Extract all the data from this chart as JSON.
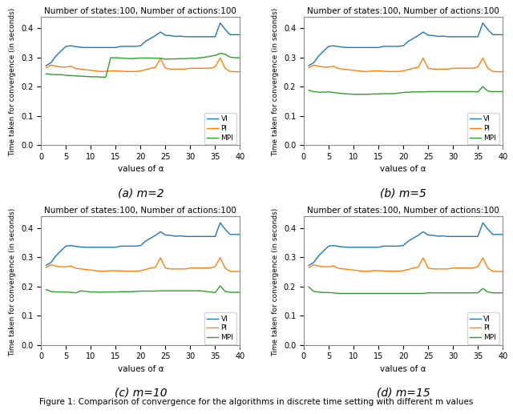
{
  "title": "Number of states:100, Number of actions:100",
  "xlabel": "values of α",
  "ylabel": "Time taken for convergence (in seconds)",
  "xlim": [
    0,
    40
  ],
  "ylim": [
    -0.01,
    0.44
  ],
  "yticks": [
    0.0,
    0.1,
    0.2,
    0.3,
    0.4
  ],
  "xticks": [
    0,
    5,
    10,
    15,
    20,
    25,
    30,
    35,
    40
  ],
  "colors": {
    "VI": "#1f77b4",
    "PI": "#ff7f0e",
    "MPI": "#2ca02c"
  },
  "subplots": [
    {
      "label": "(a) m=2",
      "alpha_values": [
        1,
        2,
        3,
        4,
        5,
        6,
        7,
        8,
        9,
        10,
        11,
        12,
        13,
        14,
        15,
        16,
        17,
        18,
        19,
        20,
        21,
        22,
        23,
        24,
        25,
        26,
        27,
        28,
        29,
        30,
        31,
        32,
        33,
        34,
        35,
        36,
        37,
        38,
        39,
        40
      ],
      "VI": [
        0.272,
        0.282,
        0.305,
        0.322,
        0.338,
        0.34,
        0.337,
        0.335,
        0.334,
        0.334,
        0.334,
        0.334,
        0.334,
        0.334,
        0.334,
        0.338,
        0.338,
        0.338,
        0.338,
        0.34,
        0.355,
        0.365,
        0.375,
        0.387,
        0.376,
        0.375,
        0.372,
        0.373,
        0.371,
        0.371,
        0.371,
        0.371,
        0.371,
        0.371,
        0.371,
        0.418,
        0.396,
        0.378,
        0.378,
        0.378
      ],
      "PI": [
        0.265,
        0.274,
        0.27,
        0.267,
        0.267,
        0.27,
        0.262,
        0.26,
        0.258,
        0.256,
        0.254,
        0.252,
        0.252,
        0.254,
        0.254,
        0.253,
        0.252,
        0.252,
        0.252,
        0.254,
        0.258,
        0.263,
        0.266,
        0.298,
        0.263,
        0.26,
        0.26,
        0.26,
        0.26,
        0.263,
        0.263,
        0.263,
        0.263,
        0.263,
        0.268,
        0.298,
        0.263,
        0.252,
        0.251,
        0.251
      ],
      "MPI": [
        0.244,
        0.242,
        0.241,
        0.241,
        0.239,
        0.238,
        0.237,
        0.236,
        0.235,
        0.234,
        0.234,
        0.233,
        0.232,
        0.299,
        0.299,
        0.298,
        0.297,
        0.296,
        0.297,
        0.298,
        0.298,
        0.298,
        0.297,
        0.298,
        0.294,
        0.295,
        0.295,
        0.296,
        0.296,
        0.297,
        0.297,
        0.299,
        0.301,
        0.304,
        0.307,
        0.314,
        0.311,
        0.301,
        0.299,
        0.299
      ]
    },
    {
      "label": "(b) m=5",
      "alpha_values": [
        1,
        2,
        3,
        4,
        5,
        6,
        7,
        8,
        9,
        10,
        11,
        12,
        13,
        14,
        15,
        16,
        17,
        18,
        19,
        20,
        21,
        22,
        23,
        24,
        25,
        26,
        27,
        28,
        29,
        30,
        31,
        32,
        33,
        34,
        35,
        36,
        37,
        38,
        39,
        40
      ],
      "VI": [
        0.272,
        0.282,
        0.305,
        0.322,
        0.338,
        0.34,
        0.337,
        0.335,
        0.334,
        0.334,
        0.334,
        0.334,
        0.334,
        0.334,
        0.334,
        0.338,
        0.338,
        0.338,
        0.338,
        0.34,
        0.355,
        0.365,
        0.375,
        0.387,
        0.376,
        0.375,
        0.372,
        0.373,
        0.371,
        0.371,
        0.371,
        0.371,
        0.371,
        0.371,
        0.371,
        0.418,
        0.396,
        0.378,
        0.378,
        0.378
      ],
      "PI": [
        0.265,
        0.274,
        0.27,
        0.267,
        0.267,
        0.27,
        0.262,
        0.26,
        0.258,
        0.256,
        0.254,
        0.252,
        0.252,
        0.254,
        0.254,
        0.253,
        0.252,
        0.252,
        0.252,
        0.254,
        0.258,
        0.263,
        0.266,
        0.298,
        0.263,
        0.26,
        0.26,
        0.26,
        0.26,
        0.263,
        0.263,
        0.263,
        0.263,
        0.263,
        0.268,
        0.298,
        0.263,
        0.252,
        0.251,
        0.251
      ],
      "MPI": [
        0.188,
        0.183,
        0.181,
        0.181,
        0.182,
        0.18,
        0.178,
        0.176,
        0.175,
        0.174,
        0.174,
        0.174,
        0.174,
        0.175,
        0.175,
        0.176,
        0.176,
        0.176,
        0.178,
        0.18,
        0.181,
        0.182,
        0.182,
        0.182,
        0.183,
        0.183,
        0.183,
        0.183,
        0.183,
        0.183,
        0.183,
        0.183,
        0.183,
        0.183,
        0.182,
        0.2,
        0.185,
        0.183,
        0.183,
        0.183
      ]
    },
    {
      "label": "(c) m=10",
      "alpha_values": [
        1,
        2,
        3,
        4,
        5,
        6,
        7,
        8,
        9,
        10,
        11,
        12,
        13,
        14,
        15,
        16,
        17,
        18,
        19,
        20,
        21,
        22,
        23,
        24,
        25,
        26,
        27,
        28,
        29,
        30,
        31,
        32,
        33,
        34,
        35,
        36,
        37,
        38,
        39,
        40
      ],
      "VI": [
        0.272,
        0.282,
        0.305,
        0.322,
        0.338,
        0.34,
        0.337,
        0.335,
        0.334,
        0.334,
        0.334,
        0.334,
        0.334,
        0.334,
        0.334,
        0.338,
        0.338,
        0.338,
        0.338,
        0.34,
        0.355,
        0.365,
        0.375,
        0.387,
        0.376,
        0.375,
        0.372,
        0.373,
        0.371,
        0.371,
        0.371,
        0.371,
        0.371,
        0.371,
        0.371,
        0.418,
        0.396,
        0.378,
        0.378,
        0.378
      ],
      "PI": [
        0.265,
        0.274,
        0.27,
        0.267,
        0.267,
        0.27,
        0.262,
        0.26,
        0.258,
        0.256,
        0.254,
        0.252,
        0.252,
        0.254,
        0.254,
        0.253,
        0.252,
        0.252,
        0.252,
        0.254,
        0.258,
        0.263,
        0.266,
        0.298,
        0.263,
        0.26,
        0.26,
        0.26,
        0.26,
        0.263,
        0.263,
        0.263,
        0.263,
        0.263,
        0.268,
        0.298,
        0.263,
        0.252,
        0.251,
        0.251
      ],
      "MPI": [
        0.189,
        0.183,
        0.181,
        0.181,
        0.181,
        0.18,
        0.178,
        0.185,
        0.183,
        0.181,
        0.181,
        0.18,
        0.181,
        0.181,
        0.181,
        0.182,
        0.182,
        0.182,
        0.183,
        0.184,
        0.184,
        0.184,
        0.184,
        0.185,
        0.185,
        0.185,
        0.185,
        0.185,
        0.185,
        0.185,
        0.185,
        0.185,
        0.183,
        0.181,
        0.179,
        0.202,
        0.183,
        0.18,
        0.18,
        0.18
      ]
    },
    {
      "label": "(d) m=15",
      "alpha_values": [
        1,
        2,
        3,
        4,
        5,
        6,
        7,
        8,
        9,
        10,
        11,
        12,
        13,
        14,
        15,
        16,
        17,
        18,
        19,
        20,
        21,
        22,
        23,
        24,
        25,
        26,
        27,
        28,
        29,
        30,
        31,
        32,
        33,
        34,
        35,
        36,
        37,
        38,
        39,
        40
      ],
      "VI": [
        0.272,
        0.282,
        0.305,
        0.322,
        0.338,
        0.34,
        0.337,
        0.335,
        0.334,
        0.334,
        0.334,
        0.334,
        0.334,
        0.334,
        0.334,
        0.338,
        0.338,
        0.338,
        0.338,
        0.34,
        0.355,
        0.365,
        0.375,
        0.387,
        0.376,
        0.375,
        0.372,
        0.373,
        0.371,
        0.371,
        0.371,
        0.371,
        0.371,
        0.371,
        0.371,
        0.418,
        0.396,
        0.378,
        0.378,
        0.378
      ],
      "PI": [
        0.265,
        0.274,
        0.27,
        0.267,
        0.267,
        0.27,
        0.262,
        0.26,
        0.258,
        0.256,
        0.254,
        0.252,
        0.252,
        0.254,
        0.254,
        0.253,
        0.252,
        0.252,
        0.252,
        0.254,
        0.258,
        0.263,
        0.266,
        0.298,
        0.263,
        0.26,
        0.26,
        0.26,
        0.26,
        0.263,
        0.263,
        0.263,
        0.263,
        0.263,
        0.268,
        0.298,
        0.263,
        0.252,
        0.251,
        0.251
      ],
      "MPI": [
        0.198,
        0.183,
        0.181,
        0.179,
        0.179,
        0.178,
        0.176,
        0.176,
        0.176,
        0.176,
        0.176,
        0.176,
        0.176,
        0.176,
        0.176,
        0.176,
        0.176,
        0.176,
        0.176,
        0.176,
        0.176,
        0.176,
        0.176,
        0.176,
        0.178,
        0.178,
        0.178,
        0.178,
        0.178,
        0.178,
        0.178,
        0.178,
        0.178,
        0.178,
        0.178,
        0.193,
        0.181,
        0.178,
        0.178,
        0.178
      ]
    }
  ],
  "caption": "Figure 1: Comparison of convergence for the algorithms in discrete time setting with different m values",
  "caption_fontsize": 7.5
}
